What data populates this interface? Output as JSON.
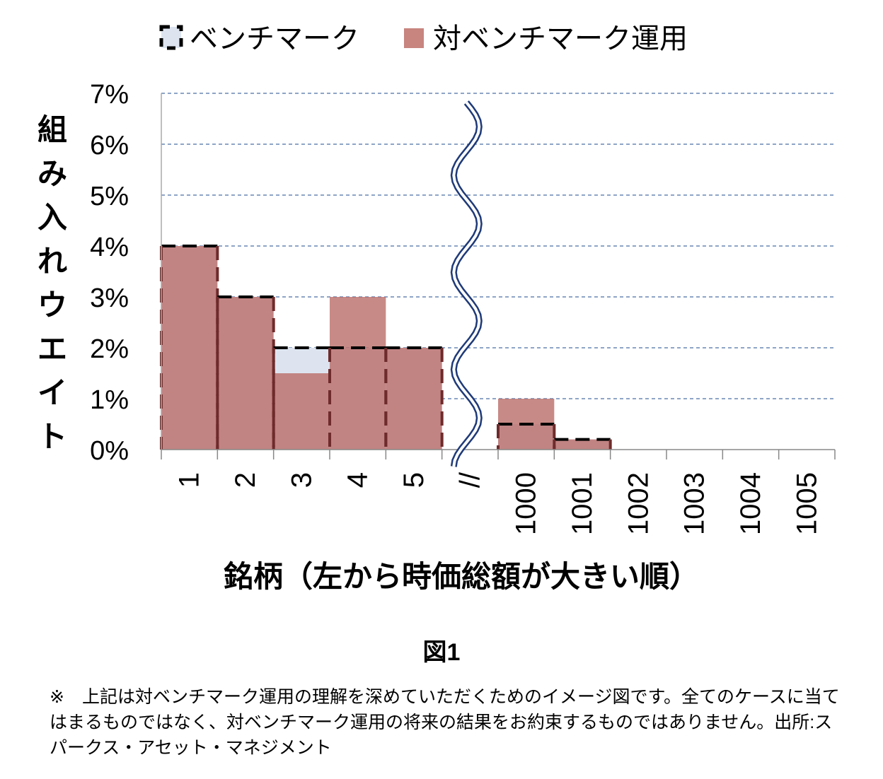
{
  "chart_data": {
    "type": "bar",
    "legend": [
      "ベンチマーク",
      "対ベンチマーク運用"
    ],
    "legend_position": "top",
    "categories": [
      "1",
      "2",
      "3",
      "4",
      "5",
      "//",
      "1000",
      "1001",
      "1002",
      "1003",
      "1004",
      "1005"
    ],
    "series": [
      {
        "name": "ベンチマーク",
        "values": [
          4,
          3,
          2,
          2,
          2,
          null,
          0.5,
          0.2,
          0,
          0,
          0,
          0
        ]
      },
      {
        "name": "対ベンチマーク運用",
        "values": [
          4,
          3,
          1.5,
          3,
          2,
          null,
          1,
          0.2,
          0,
          0,
          0,
          0
        ]
      }
    ],
    "ylabel": "組み入れウエイト",
    "xlabel": "銘柄（左から時価総額が大きい順）",
    "yticks": [
      "0%",
      "1%",
      "2%",
      "3%",
      "4%",
      "5%",
      "6%",
      "7%"
    ],
    "ylim": [
      0,
      7
    ],
    "grid": true,
    "axis_break_after": "5",
    "colors": {
      "benchmark": "#dde4f0",
      "active": "#c47e7a",
      "grid": "#4a6fa5",
      "break": "#1f3a78"
    }
  },
  "figure_label": "図1",
  "note": "※　上記は対ベンチマーク運用の理解を深めていただくためのイメージ図です。全てのケースに当てはまるものではなく、対ベンチマーク運用の将来の結果をお約束するものではありません。出所:スパークス・アセット・マネジメント"
}
